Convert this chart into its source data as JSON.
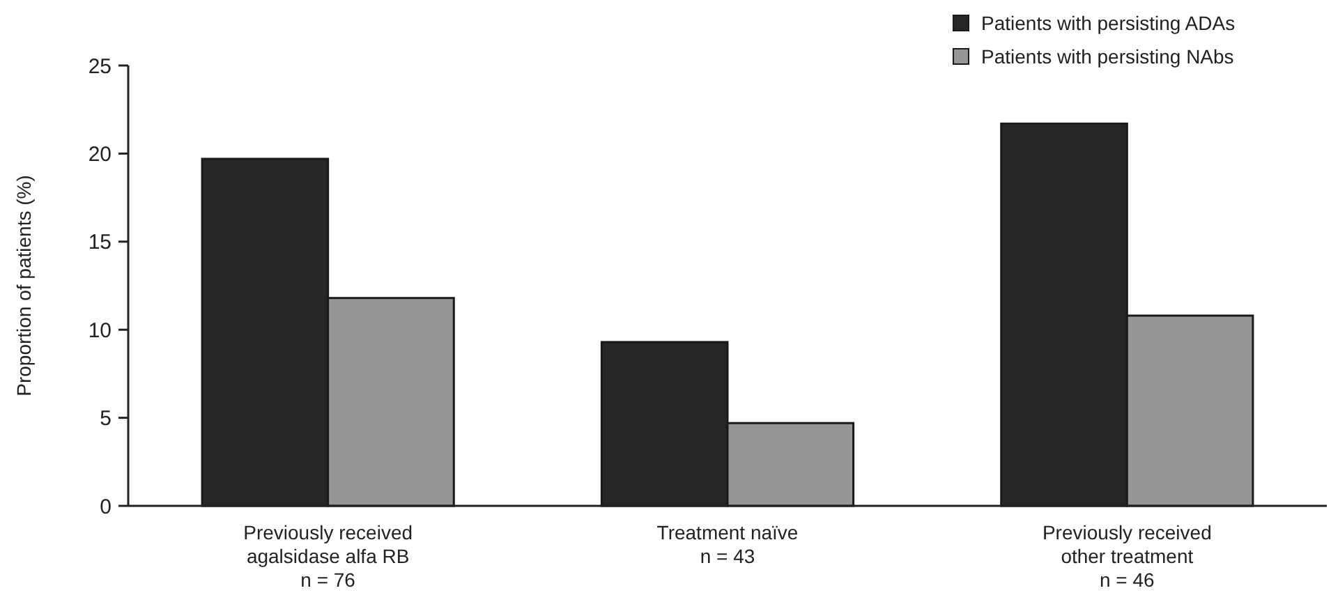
{
  "chart_data": {
    "type": "bar",
    "ylabel": "Proportion of patients (%)",
    "categories": [
      "Previously received\nagalsidase alfa RB\nn = 76",
      "Treatment naïve\nn = 43",
      "Previously received\nother treatment\nn = 46"
    ],
    "series": [
      {
        "name": "Patients with persisting ADAs",
        "color": "#262626",
        "values": [
          19.7,
          9.3,
          21.7
        ]
      },
      {
        "name": "Patients with persisting NAbs",
        "color": "#969696",
        "values": [
          11.8,
          4.7,
          10.8
        ]
      }
    ],
    "ylim": [
      0,
      25
    ],
    "yticks": [
      0,
      5,
      10,
      15,
      20,
      25
    ],
    "grid": false,
    "legend": "top right"
  }
}
